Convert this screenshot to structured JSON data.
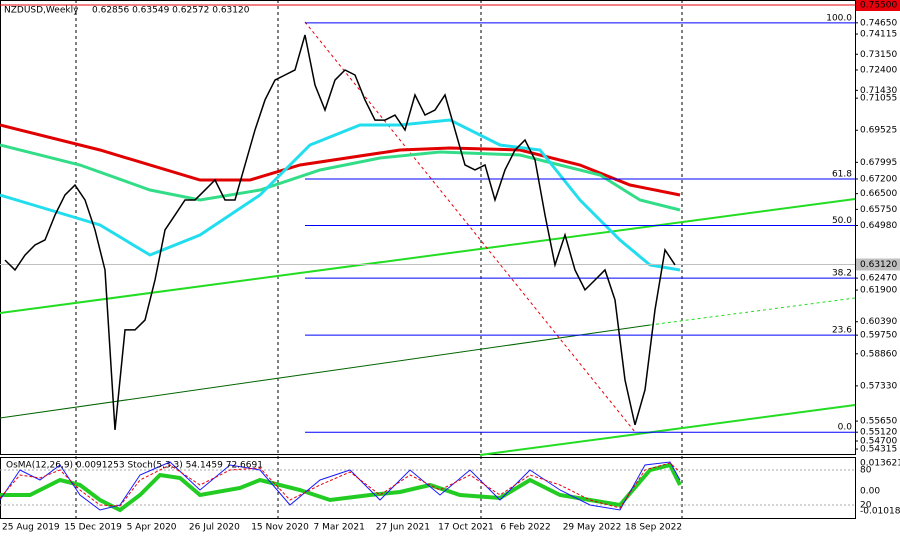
{
  "chart_data": {
    "type": "line",
    "title": "NZDUSD,Weekly",
    "quote": "0.62856 0.63549 0.62572 0.63120",
    "ylim": [
      0.547,
      0.755
    ],
    "yticks": [
      {
        "value": 0.7465,
        "label": "0.74650"
      },
      {
        "value": 0.74115,
        "label": "0.74115"
      },
      {
        "value": 0.7315,
        "label": "0.73150"
      },
      {
        "value": 0.724,
        "label": "0.72400"
      },
      {
        "value": 0.7143,
        "label": "0.71430"
      },
      {
        "value": 0.71055,
        "label": "0.71055"
      },
      {
        "value": 0.69525,
        "label": "0.69525"
      },
      {
        "value": 0.67995,
        "label": "0.67995"
      },
      {
        "value": 0.672,
        "label": "0.67200"
      },
      {
        "value": 0.665,
        "label": "0.66500"
      },
      {
        "value": 0.6575,
        "label": "0.65750"
      },
      {
        "value": 0.6498,
        "label": "0.64980"
      },
      {
        "value": 0.6247,
        "label": "0.62470"
      },
      {
        "value": 0.619,
        "label": "0.61900"
      },
      {
        "value": 0.6039,
        "label": "0.60390"
      },
      {
        "value": 0.5975,
        "label": "0.59750"
      },
      {
        "value": 0.5886,
        "label": "0.58860"
      },
      {
        "value": 0.5733,
        "label": "0.57330"
      },
      {
        "value": 0.5565,
        "label": "0.55650"
      },
      {
        "value": 0.5512,
        "label": "0.55120"
      },
      {
        "value": 0.547,
        "label": "0.54700"
      },
      {
        "value": 0.54315,
        "label": "0.54315"
      }
    ],
    "high_level": {
      "value": 0.755,
      "label": "0.75500",
      "color": "#e8000b"
    },
    "current_price": {
      "value": 0.6312,
      "label": "0.63120",
      "color": "#c0c0c0"
    },
    "fib_levels": [
      {
        "label": "100.0",
        "price": 0.7465
      },
      {
        "label": "61.8",
        "price": 0.672
      },
      {
        "label": "50.0",
        "price": 0.6498
      },
      {
        "label": "38.2",
        "price": 0.6247
      },
      {
        "label": "23.6",
        "price": 0.5975
      },
      {
        "label": "0.0",
        "price": 0.5512
      }
    ],
    "fib_color": "#0000ff",
    "x_labels": [
      "25 Aug 2019",
      "15 Dec 2019",
      "5 Apr 2020",
      "26 Jul 2020",
      "15 Nov 2020",
      "7 Mar 2021",
      "27 Jun 2021",
      "17 Oct 2021",
      "6 Feb 2022",
      "29 May 2022",
      "18 Sep 2022"
    ],
    "series": [
      {
        "name": "Close",
        "color": "#000000",
        "values": [
          0.6333,
          0.6286,
          0.6357,
          0.6405,
          0.6429,
          0.6548,
          0.6644,
          0.6691,
          0.662,
          0.6477,
          0.6286,
          0.5523,
          0.6,
          0.6,
          0.6047,
          0.6238,
          0.6477,
          0.6548,
          0.662,
          0.662,
          0.6667,
          0.6715,
          0.662,
          0.662,
          0.6787,
          0.6954,
          0.7097,
          0.7192,
          0.7216,
          0.724,
          0.7407,
          0.7168,
          0.7049,
          0.7192,
          0.724,
          0.7216,
          0.7097,
          0.7001,
          0.7001,
          0.7025,
          0.6954,
          0.7121,
          0.7025,
          0.7049,
          0.7121,
          0.6954,
          0.6787,
          0.6763,
          0.6787,
          0.662,
          0.6763,
          0.6858,
          0.6906,
          0.6811,
          0.6548,
          0.631,
          0.6453,
          0.6286,
          0.6191,
          0.6238,
          0.6286,
          0.6143,
          0.5761,
          0.5547,
          0.5714,
          0.6096,
          0.6382,
          0.631
        ]
      }
    ],
    "indicator": {
      "title": "OsMA(12,26,9) 0.0091253  Stoch(5,3,3) 54.1459 72.6691",
      "axis_labels": [
        "0.0136211",
        "80",
        "0.00",
        "20",
        "-0.010181"
      ]
    }
  }
}
